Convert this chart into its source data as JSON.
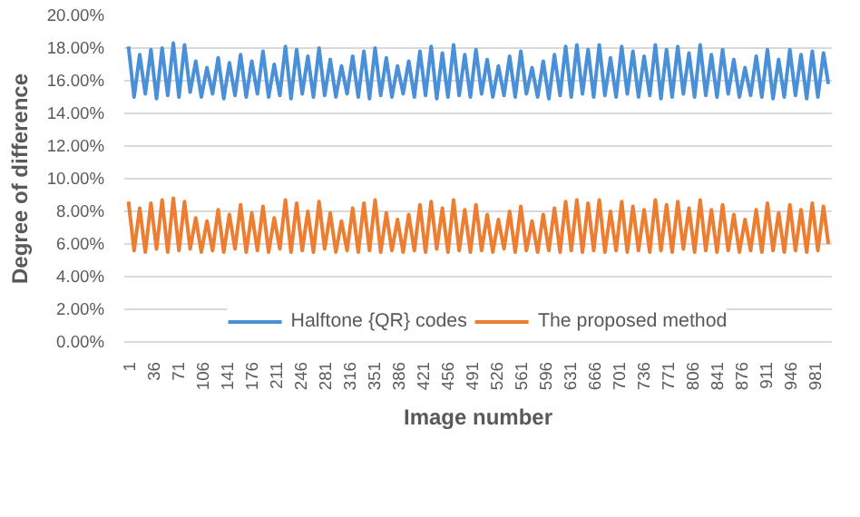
{
  "chart_data": {
    "type": "line",
    "xlabel": "Image number",
    "ylabel": "Degree of difference",
    "x": [
      1,
      9,
      17,
      25,
      33,
      41,
      49,
      57,
      65,
      73,
      81,
      89,
      97,
      105,
      113,
      121,
      129,
      137,
      145,
      153,
      161,
      169,
      177,
      185,
      193,
      201,
      209,
      217,
      225,
      233,
      241,
      249,
      257,
      265,
      273,
      281,
      289,
      297,
      305,
      313,
      321,
      329,
      337,
      345,
      353,
      361,
      369,
      377,
      385,
      393,
      401,
      409,
      417,
      425,
      433,
      441,
      449,
      457,
      465,
      473,
      481,
      489,
      497,
      505,
      513,
      521,
      529,
      537,
      545,
      553,
      561,
      569,
      577,
      585,
      593,
      601,
      609,
      617,
      625,
      633,
      641,
      649,
      657,
      665,
      673,
      681,
      689,
      697,
      705,
      713,
      721,
      729,
      737,
      745,
      753,
      761,
      769,
      777,
      785,
      793,
      801,
      809,
      817,
      825,
      833,
      841,
      849,
      857,
      865,
      873,
      881,
      889,
      897,
      905,
      913,
      921,
      929,
      937,
      945,
      953,
      961,
      969,
      977,
      985,
      993,
      1000
    ],
    "series": [
      {
        "name": "Halftone {QR} codes",
        "color": "#4a90d9",
        "values": [
          18.1,
          15.0,
          17.6,
          15.2,
          17.9,
          14.9,
          18.0,
          15.1,
          18.3,
          15.0,
          18.2,
          15.3,
          17.2,
          15.0,
          16.8,
          15.2,
          17.4,
          14.9,
          17.1,
          15.1,
          17.6,
          15.0,
          17.2,
          15.2,
          17.8,
          15.0,
          17.0,
          15.1,
          18.1,
          14.9,
          17.9,
          15.2,
          17.5,
          15.0,
          18.0,
          15.1,
          17.3,
          15.0,
          16.9,
          15.2,
          17.5,
          15.0,
          17.8,
          14.9,
          18.0,
          15.1,
          17.4,
          15.0,
          16.9,
          15.2,
          17.2,
          15.0,
          17.8,
          15.1,
          18.1,
          14.9,
          17.7,
          15.0,
          18.2,
          15.1,
          17.6,
          15.0,
          17.9,
          15.2,
          17.3,
          15.0,
          16.9,
          15.1,
          17.5,
          15.0,
          17.8,
          15.2,
          16.8,
          15.0,
          17.2,
          14.9,
          17.6,
          15.1,
          18.1,
          15.0,
          18.2,
          15.2,
          17.9,
          15.0,
          18.2,
          15.1,
          17.4,
          15.0,
          18.1,
          15.2,
          17.8,
          15.0,
          17.5,
          15.1,
          18.2,
          14.9,
          17.9,
          15.0,
          18.1,
          15.2,
          17.7,
          15.0,
          18.2,
          15.1,
          17.6,
          15.0,
          17.9,
          15.2,
          17.3,
          15.0,
          16.8,
          15.1,
          17.5,
          15.0,
          17.9,
          14.9,
          17.3,
          15.0,
          17.9,
          15.1,
          17.6,
          14.9,
          17.8,
          15.0,
          17.7,
          15.8
        ]
      },
      {
        "name": "The proposed method",
        "color": "#ed7d31",
        "values": [
          8.6,
          5.6,
          8.2,
          5.5,
          8.5,
          5.7,
          8.7,
          5.5,
          8.8,
          5.6,
          8.6,
          5.7,
          7.6,
          5.5,
          7.4,
          5.6,
          8.1,
          5.5,
          7.8,
          5.7,
          8.4,
          5.5,
          7.9,
          5.6,
          8.3,
          5.5,
          7.6,
          5.7,
          8.7,
          5.5,
          8.5,
          5.6,
          8.0,
          5.5,
          8.6,
          5.7,
          7.9,
          5.5,
          7.4,
          5.6,
          8.2,
          5.5,
          8.5,
          5.6,
          8.7,
          5.5,
          7.9,
          5.6,
          7.5,
          5.5,
          7.8,
          5.6,
          8.4,
          5.5,
          8.6,
          5.7,
          8.2,
          5.5,
          8.7,
          5.6,
          8.1,
          5.5,
          8.4,
          5.6,
          7.8,
          5.5,
          7.5,
          5.7,
          8.0,
          5.5,
          8.3,
          5.6,
          7.4,
          5.5,
          7.8,
          5.6,
          8.2,
          5.5,
          8.6,
          5.6,
          8.7,
          5.5,
          8.5,
          5.6,
          8.7,
          5.5,
          8.0,
          5.6,
          8.6,
          5.5,
          8.3,
          5.6,
          8.1,
          5.5,
          8.7,
          5.6,
          8.4,
          5.5,
          8.6,
          5.7,
          8.2,
          5.5,
          8.7,
          5.6,
          8.1,
          5.5,
          8.4,
          5.6,
          7.8,
          5.5,
          7.5,
          5.6,
          8.1,
          5.5,
          8.5,
          5.6,
          7.9,
          5.5,
          8.4,
          5.6,
          8.1,
          5.5,
          8.5,
          5.6,
          8.3,
          6.0
        ]
      }
    ],
    "xlim": [
      -5,
      1005
    ],
    "xticks": [
      1,
      36,
      71,
      106,
      141,
      176,
      211,
      246,
      281,
      316,
      351,
      386,
      421,
      456,
      491,
      526,
      561,
      596,
      631,
      666,
      701,
      736,
      771,
      806,
      841,
      876,
      911,
      946,
      981
    ],
    "ylim": [
      0,
      20
    ],
    "yticks": [
      {
        "value": 0,
        "label": "0.00%"
      },
      {
        "value": 2,
        "label": "2.00%"
      },
      {
        "value": 4,
        "label": "4.00%"
      },
      {
        "value": 6,
        "label": "6.00%"
      },
      {
        "value": 8,
        "label": "8.00%"
      },
      {
        "value": 10,
        "label": "10.00%"
      },
      {
        "value": 12,
        "label": "12.00%"
      },
      {
        "value": 14,
        "label": "14.00%"
      },
      {
        "value": 16,
        "label": "16.00%"
      },
      {
        "value": 18,
        "label": "18.00%"
      },
      {
        "value": 20,
        "label": "20.00%"
      }
    ],
    "grid": "y",
    "legend": "bottom",
    "marker": "none",
    "line_style": "solid"
  }
}
